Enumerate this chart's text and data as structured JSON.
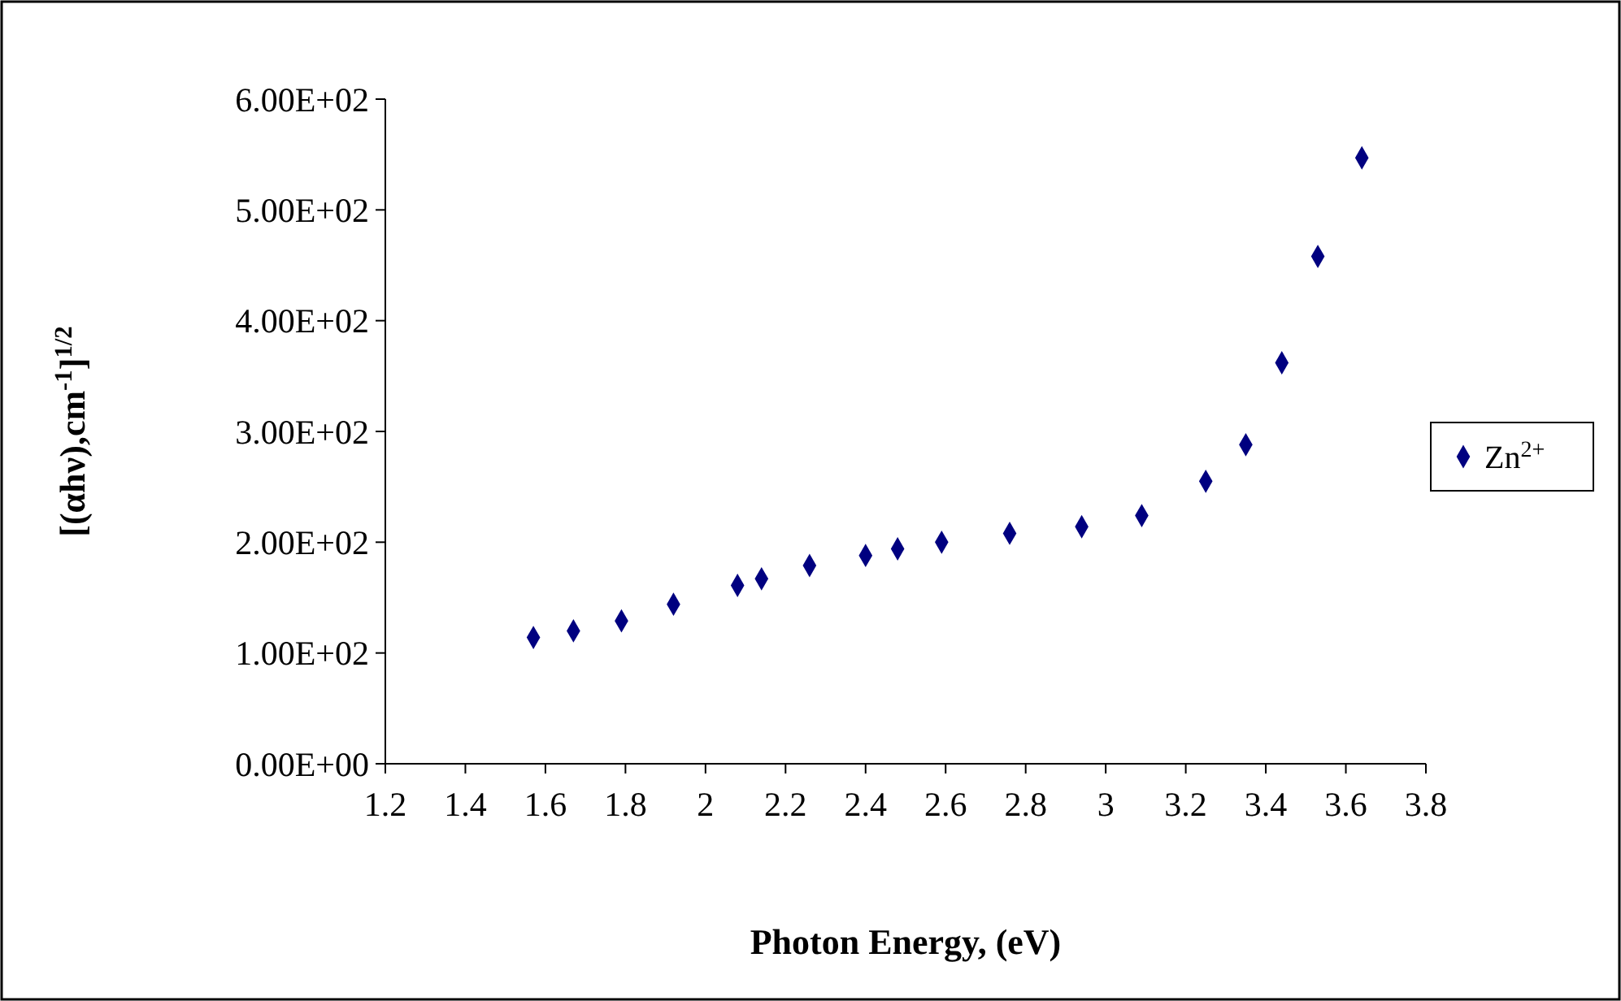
{
  "chart_data": {
    "type": "scatter",
    "xlabel": "Photon Energy, (eV)",
    "ylabel": "[(αhν),cm$^{-1}$]$^{1/2}$",
    "x": [
      1.57,
      1.67,
      1.79,
      1.92,
      2.08,
      2.14,
      2.26,
      2.4,
      2.48,
      2.59,
      2.76,
      2.94,
      3.09,
      3.25,
      3.35,
      3.44,
      3.53,
      3.64
    ],
    "series": [
      {
        "name": "Zn$^{2+}$",
        "color": "#000080",
        "values": [
          114,
          120,
          129,
          144,
          161,
          167,
          179,
          188,
          194,
          200,
          208,
          214,
          224,
          255,
          288,
          362,
          458,
          547
        ]
      }
    ],
    "xlim": [
      1.2,
      3.8
    ],
    "xticks": [
      1.2,
      1.4,
      1.6,
      1.8,
      2,
      2.2,
      2.4,
      2.6,
      2.8,
      3,
      3.2,
      3.4,
      3.6,
      3.8
    ],
    "ylim": [
      0,
      600
    ],
    "yticks": [
      {
        "value": 0,
        "label": "0.00E+00"
      },
      {
        "value": 100,
        "label": "1.00E+02"
      },
      {
        "value": 200,
        "label": "2.00E+02"
      },
      {
        "value": 300,
        "label": "3.00E+02"
      },
      {
        "value": 400,
        "label": "4.00E+02"
      },
      {
        "value": 500,
        "label": "5.00E+02"
      },
      {
        "value": 600,
        "label": "6.00E+02"
      }
    ],
    "marker": "diamond",
    "legend": "right",
    "grid": false
  }
}
